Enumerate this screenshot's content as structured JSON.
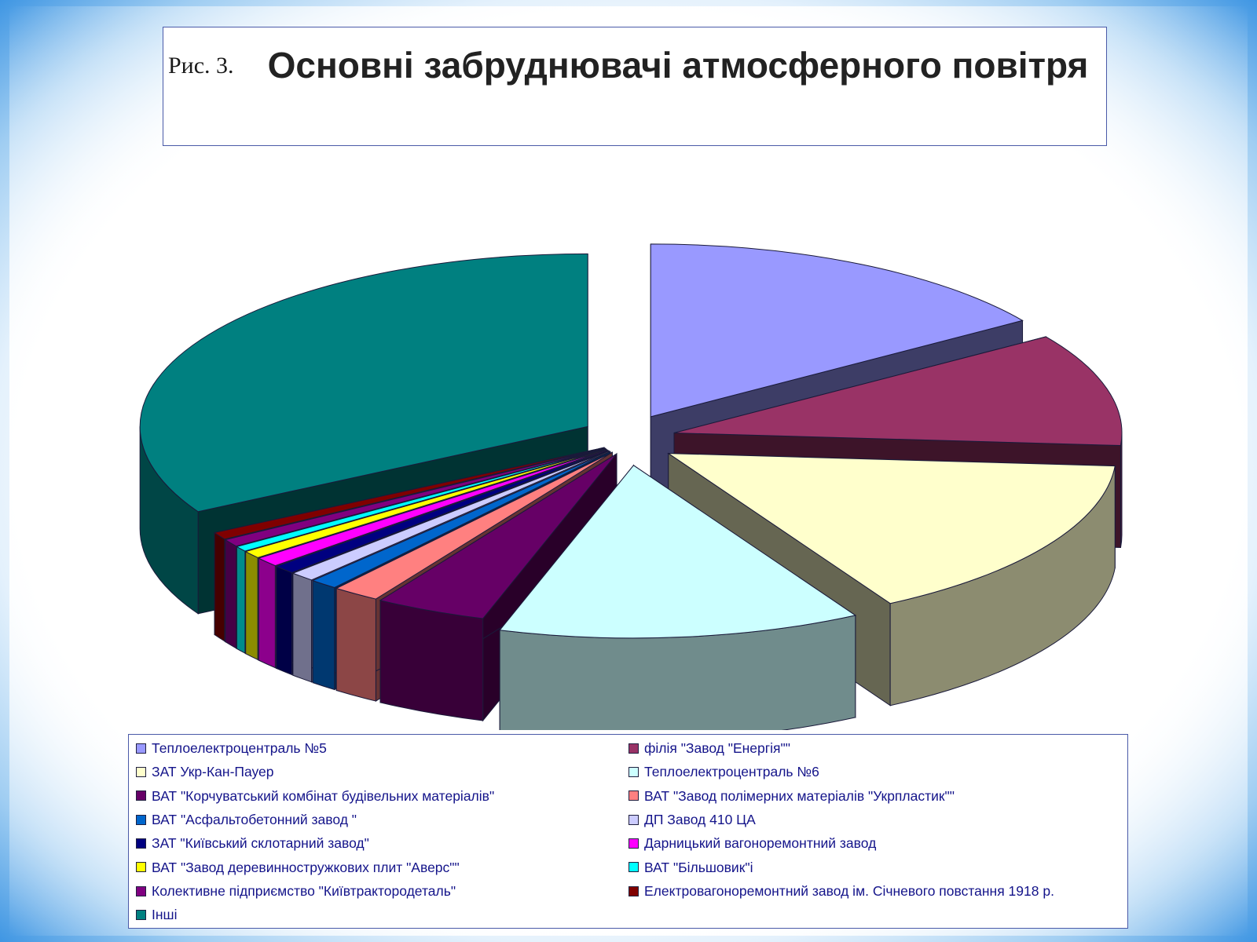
{
  "figure_label": "Рис. 3.",
  "chart_data": {
    "type": "pie",
    "title": "Основні забруднювачі атмосферного повітря",
    "legend_position": "bottom",
    "categories": [
      "Теплоелектроцентраль №5",
      "філія \"Завод \"Енергія\"\"",
      "ЗАТ Укр-Кан-Пауер",
      "Теплоелектроцентраль №6",
      "ВАТ \"Корчуватський комбінат будівельних матеріалів\"",
      "ВАТ \"Завод полімерних матеріалів \"Укрпластик\"\"",
      "ВАТ \"Асфальтобетонний завод \"",
      "ДП Завод 410 ЦА",
      "ЗАТ \"Київський склотарний завод\"",
      "Дарницький вагоноремонтний завод",
      "ВАТ \"Завод деревинностружкових плит \"Аверс\"\"",
      "ВАТ \"Більшовик\"і",
      "Колективне підприємство \"Київтрактородеталь\"",
      "Електровагоноремонтний завод ім. Січневого повстання 1918 р.",
      "Інші"
    ],
    "values": [
      15.5,
      10.5,
      15.5,
      13.0,
      4.0,
      1.7,
      1.0,
      0.9,
      0.8,
      0.9,
      0.7,
      0.5,
      0.7,
      0.7,
      33.0
    ],
    "colors": [
      "#9999ff",
      "#993366",
      "#ffffcc",
      "#ccffff",
      "#660066",
      "#ff8080",
      "#0066cc",
      "#ccccff",
      "#000080",
      "#ff00ff",
      "#ffff00",
      "#00ffff",
      "#800080",
      "#800000",
      "#008080"
    ]
  }
}
